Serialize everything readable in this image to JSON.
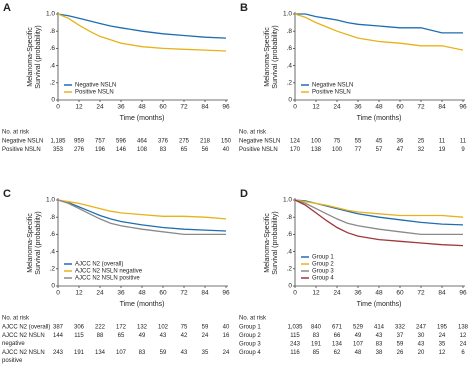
{
  "chart_data": [
    {
      "type": "line",
      "panel": "A",
      "ylabel_lines": [
        "Melanoma-Specific",
        "Survival (probability)"
      ],
      "xlabel": "Time (months)",
      "xlim": [
        0,
        96
      ],
      "xticks": [
        0,
        12,
        24,
        36,
        48,
        60,
        72,
        84,
        96
      ],
      "ylim": [
        0,
        1
      ],
      "yticks": [
        0,
        {
          "value": 0.2,
          "label": ".2"
        },
        {
          "value": 0.4,
          "label": ".4"
        },
        {
          "value": 0.6,
          "label": ".6"
        },
        {
          "value": 0.8,
          "label": ".8"
        },
        {
          "value": 1,
          "label": "1.0"
        }
      ],
      "legend": "lower left",
      "series": [
        {
          "name": "Negative NSLN",
          "color": "#1f6db3",
          "x": [
            0,
            6,
            12,
            18,
            24,
            30,
            36,
            48,
            60,
            72,
            84,
            96
          ],
          "values": [
            1,
            0.98,
            0.95,
            0.92,
            0.89,
            0.86,
            0.84,
            0.8,
            0.77,
            0.75,
            0.73,
            0.72
          ]
        },
        {
          "name": "Positive NSLN",
          "color": "#e8b21a",
          "x": [
            0,
            6,
            12,
            18,
            24,
            30,
            36,
            48,
            60,
            72,
            84,
            96
          ],
          "values": [
            1,
            0.95,
            0.87,
            0.8,
            0.74,
            0.7,
            0.66,
            0.62,
            0.6,
            0.59,
            0.58,
            0.57
          ]
        }
      ],
      "at_risk_title": "No. at risk",
      "at_risk": [
        {
          "label_lines": [
            "Negative NSLN"
          ],
          "values": [
            {
              "value": 1185,
              "label": "1,185"
            },
            959,
            757,
            596,
            464,
            376,
            275,
            218,
            150
          ]
        },
        {
          "label_lines": [
            "Positive NSLN"
          ],
          "values": [
            353,
            276,
            196,
            146,
            108,
            83,
            65,
            56,
            40
          ]
        }
      ]
    },
    {
      "type": "line",
      "panel": "B",
      "ylabel_lines": [
        "Melanoma-Specific",
        "Survival (probability)"
      ],
      "xlabel": "Time (months)",
      "xlim": [
        0,
        96
      ],
      "xticks": [
        0,
        12,
        24,
        36,
        48,
        60,
        72,
        84,
        96
      ],
      "ylim": [
        0,
        1
      ],
      "yticks": [
        0,
        {
          "value": 0.2,
          "label": ".2"
        },
        {
          "value": 0.4,
          "label": ".4"
        },
        {
          "value": 0.6,
          "label": ".6"
        },
        {
          "value": 0.8,
          "label": ".8"
        },
        {
          "value": 1,
          "label": "1.0"
        }
      ],
      "legend": "lower left",
      "series": [
        {
          "name": "Negative NSLN",
          "color": "#1f6db3",
          "x": [
            0,
            6,
            12,
            18,
            24,
            30,
            36,
            48,
            60,
            72,
            84,
            96
          ],
          "values": [
            1,
            1,
            0.97,
            0.95,
            0.93,
            0.9,
            0.88,
            0.86,
            0.84,
            0.84,
            0.78,
            0.78
          ]
        },
        {
          "name": "Positive NSLN",
          "color": "#e8b21a",
          "x": [
            0,
            6,
            12,
            18,
            24,
            30,
            36,
            48,
            60,
            72,
            84,
            96
          ],
          "values": [
            1,
            0.96,
            0.9,
            0.85,
            0.8,
            0.76,
            0.72,
            0.68,
            0.66,
            0.63,
            0.63,
            0.58
          ]
        }
      ],
      "at_risk_title": "No. at risk",
      "at_risk": [
        {
          "label_lines": [
            "Negative NSLN"
          ],
          "values": [
            124,
            100,
            75,
            55,
            45,
            36,
            25,
            11,
            11
          ]
        },
        {
          "label_lines": [
            "Positive NSLN"
          ],
          "values": [
            170,
            138,
            100,
            77,
            57,
            47,
            32,
            19,
            9
          ]
        }
      ]
    },
    {
      "type": "line",
      "panel": "C",
      "ylabel_lines": [
        "Melanoma-Specific",
        "Survival (probability)"
      ],
      "xlabel": "Time (months)",
      "xlim": [
        0,
        96
      ],
      "xticks": [
        0,
        12,
        24,
        36,
        48,
        60,
        72,
        84,
        96
      ],
      "ylim": [
        0,
        1
      ],
      "yticks": [
        0,
        {
          "value": 0.2,
          "label": ".2"
        },
        {
          "value": 0.4,
          "label": ".4"
        },
        {
          "value": 0.6,
          "label": ".6"
        },
        {
          "value": 0.8,
          "label": ".8"
        },
        {
          "value": 1,
          "label": "1.0"
        }
      ],
      "legend": "lower left",
      "series": [
        {
          "name": "AJCC N2 (overall)",
          "color": "#1f6db3",
          "x": [
            0,
            6,
            12,
            18,
            24,
            30,
            36,
            48,
            60,
            72,
            84,
            96
          ],
          "values": [
            1,
            0.97,
            0.92,
            0.87,
            0.82,
            0.78,
            0.75,
            0.71,
            0.68,
            0.66,
            0.65,
            0.64
          ]
        },
        {
          "name": "AJCC N2 NSLN negative",
          "color": "#e8b21a",
          "x": [
            0,
            6,
            12,
            18,
            24,
            30,
            36,
            48,
            60,
            72,
            84,
            96
          ],
          "values": [
            1,
            0.98,
            0.96,
            0.93,
            0.9,
            0.87,
            0.85,
            0.83,
            0.81,
            0.81,
            0.8,
            0.78
          ]
        },
        {
          "name": "AJCC N2 NSLN positive",
          "color": "#8a8a8a",
          "x": [
            0,
            6,
            12,
            18,
            24,
            30,
            36,
            48,
            60,
            72,
            84,
            96
          ],
          "values": [
            1,
            0.96,
            0.9,
            0.84,
            0.78,
            0.73,
            0.7,
            0.66,
            0.63,
            0.6,
            0.6,
            0.6
          ]
        }
      ],
      "at_risk_title": "No. at risk",
      "at_risk": [
        {
          "label_lines": [
            "AJCC N2 (overall)"
          ],
          "values": [
            387,
            306,
            222,
            172,
            132,
            102,
            75,
            59,
            40
          ]
        },
        {
          "label_lines": [
            "AJCC N2 NSLN",
            "negative"
          ],
          "values": [
            144,
            115,
            88,
            65,
            49,
            43,
            42,
            24,
            16
          ]
        },
        {
          "label_lines": [
            "AJCC N2 NSLN",
            "positive"
          ],
          "values": [
            243,
            191,
            134,
            107,
            83,
            59,
            43,
            35,
            24
          ]
        }
      ]
    },
    {
      "type": "line",
      "panel": "D",
      "ylabel_lines": [
        "Melanoma-Specific",
        "Survival (probability)"
      ],
      "xlabel": "Time (months)",
      "xlim": [
        0,
        96
      ],
      "xticks": [
        0,
        12,
        24,
        36,
        48,
        60,
        72,
        84,
        96
      ],
      "ylim": [
        0,
        1
      ],
      "yticks": [
        0,
        {
          "value": 0.2,
          "label": ".2"
        },
        {
          "value": 0.4,
          "label": ".4"
        },
        {
          "value": 0.6,
          "label": ".6"
        },
        {
          "value": 0.8,
          "label": ".8"
        },
        {
          "value": 1,
          "label": "1.0"
        }
      ],
      "legend": "lower left",
      "series": [
        {
          "name": "Group 1",
          "color": "#1f6db3",
          "x": [
            0,
            6,
            12,
            18,
            24,
            30,
            36,
            48,
            60,
            72,
            84,
            96
          ],
          "values": [
            1,
            0.99,
            0.96,
            0.93,
            0.9,
            0.87,
            0.84,
            0.8,
            0.77,
            0.74,
            0.72,
            0.71
          ]
        },
        {
          "name": "Group 2",
          "color": "#e8b21a",
          "x": [
            0,
            6,
            12,
            18,
            24,
            30,
            36,
            48,
            60,
            72,
            84,
            96
          ],
          "values": [
            1,
            0.98,
            0.96,
            0.94,
            0.91,
            0.88,
            0.86,
            0.84,
            0.82,
            0.82,
            0.82,
            0.8
          ]
        },
        {
          "name": "Group 3",
          "color": "#8a8a8a",
          "x": [
            0,
            6,
            12,
            18,
            24,
            30,
            36,
            48,
            60,
            72,
            84,
            96
          ],
          "values": [
            1,
            0.96,
            0.9,
            0.84,
            0.78,
            0.73,
            0.7,
            0.66,
            0.63,
            0.6,
            0.6,
            0.6
          ]
        },
        {
          "name": "Group 4",
          "color": "#a0363a",
          "x": [
            0,
            6,
            12,
            18,
            24,
            30,
            36,
            48,
            60,
            72,
            84,
            96
          ],
          "values": [
            1,
            0.94,
            0.85,
            0.76,
            0.68,
            0.62,
            0.58,
            0.54,
            0.52,
            0.5,
            0.48,
            0.47
          ]
        }
      ],
      "at_risk_title": "No. at risk",
      "at_risk": [
        {
          "label_lines": [
            "Group 1"
          ],
          "values": [
            {
              "value": 1035,
              "label": "1,035"
            },
            840,
            671,
            529,
            414,
            332,
            247,
            195,
            138
          ]
        },
        {
          "label_lines": [
            "Group 2"
          ],
          "values": [
            115,
            83,
            66,
            49,
            43,
            37,
            30,
            24,
            12
          ]
        },
        {
          "label_lines": [
            "Group 3"
          ],
          "values": [
            243,
            191,
            134,
            107,
            83,
            59,
            43,
            35,
            24
          ]
        },
        {
          "label_lines": [
            "Group 4"
          ],
          "values": [
            116,
            85,
            62,
            48,
            38,
            26,
            20,
            12,
            6
          ]
        }
      ]
    }
  ]
}
